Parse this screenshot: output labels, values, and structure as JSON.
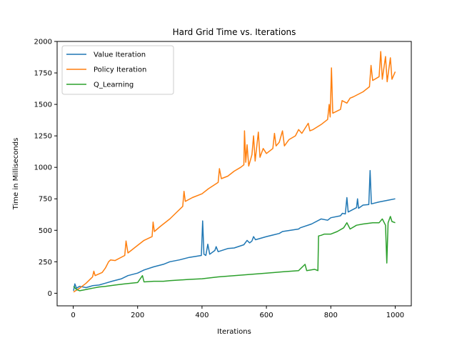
{
  "chart_data": {
    "type": "line",
    "title": "Hard Grid Time vs. Iterations",
    "xlabel": "Iterations",
    "ylabel": "Time in Milliseconds",
    "xlim": [
      -50,
      1050
    ],
    "ylim": [
      -100,
      2000
    ],
    "xticks": [
      0,
      200,
      400,
      600,
      800,
      1000
    ],
    "yticks": [
      0,
      250,
      500,
      750,
      1000,
      1250,
      1500,
      1750,
      2000
    ],
    "grid": false,
    "legend_position": "top-left",
    "series": [
      {
        "name": "Value Iteration",
        "color": "#1f77b4",
        "points": [
          [
            1,
            20
          ],
          [
            5,
            75
          ],
          [
            10,
            40
          ],
          [
            20,
            55
          ],
          [
            40,
            45
          ],
          [
            60,
            60
          ],
          [
            80,
            65
          ],
          [
            100,
            80
          ],
          [
            120,
            95
          ],
          [
            150,
            115
          ],
          [
            170,
            140
          ],
          [
            200,
            160
          ],
          [
            220,
            185
          ],
          [
            250,
            210
          ],
          [
            280,
            230
          ],
          [
            300,
            250
          ],
          [
            330,
            265
          ],
          [
            360,
            285
          ],
          [
            398,
            300
          ],
          [
            402,
            575
          ],
          [
            406,
            310
          ],
          [
            412,
            300
          ],
          [
            418,
            390
          ],
          [
            424,
            310
          ],
          [
            440,
            340
          ],
          [
            444,
            370
          ],
          [
            450,
            330
          ],
          [
            480,
            355
          ],
          [
            500,
            360
          ],
          [
            530,
            385
          ],
          [
            540,
            420
          ],
          [
            548,
            400
          ],
          [
            555,
            415
          ],
          [
            560,
            450
          ],
          [
            566,
            425
          ],
          [
            600,
            450
          ],
          [
            640,
            475
          ],
          [
            650,
            490
          ],
          [
            700,
            510
          ],
          [
            705,
            520
          ],
          [
            740,
            550
          ],
          [
            770,
            590
          ],
          [
            790,
            580
          ],
          [
            800,
            600
          ],
          [
            830,
            615
          ],
          [
            836,
            635
          ],
          [
            845,
            630
          ],
          [
            850,
            760
          ],
          [
            854,
            645
          ],
          [
            880,
            680
          ],
          [
            883,
            750
          ],
          [
            886,
            675
          ],
          [
            900,
            700
          ],
          [
            918,
            705
          ],
          [
            922,
            975
          ],
          [
            926,
            710
          ],
          [
            950,
            725
          ],
          [
            980,
            740
          ],
          [
            1000,
            750
          ]
        ]
      },
      {
        "name": "Policy Iteration",
        "color": "#ff7f0e",
        "points": [
          [
            1,
            10
          ],
          [
            20,
            40
          ],
          [
            40,
            80
          ],
          [
            60,
            130
          ],
          [
            64,
            175
          ],
          [
            68,
            140
          ],
          [
            90,
            165
          ],
          [
            100,
            200
          ],
          [
            110,
            250
          ],
          [
            116,
            265
          ],
          [
            130,
            260
          ],
          [
            160,
            300
          ],
          [
            164,
            415
          ],
          [
            170,
            320
          ],
          [
            200,
            380
          ],
          [
            220,
            420
          ],
          [
            245,
            450
          ],
          [
            248,
            565
          ],
          [
            252,
            490
          ],
          [
            270,
            530
          ],
          [
            300,
            590
          ],
          [
            320,
            640
          ],
          [
            340,
            690
          ],
          [
            344,
            810
          ],
          [
            348,
            730
          ],
          [
            370,
            760
          ],
          [
            400,
            790
          ],
          [
            420,
            830
          ],
          [
            450,
            880
          ],
          [
            454,
            990
          ],
          [
            460,
            910
          ],
          [
            480,
            930
          ],
          [
            500,
            970
          ],
          [
            520,
            1000
          ],
          [
            530,
            1020
          ],
          [
            532,
            1290
          ],
          [
            536,
            1040
          ],
          [
            540,
            1180
          ],
          [
            545,
            1010
          ],
          [
            555,
            1100
          ],
          [
            560,
            1250
          ],
          [
            565,
            1050
          ],
          [
            575,
            1280
          ],
          [
            580,
            1080
          ],
          [
            590,
            1150
          ],
          [
            600,
            1110
          ],
          [
            620,
            1150
          ],
          [
            625,
            1270
          ],
          [
            630,
            1170
          ],
          [
            640,
            1200
          ],
          [
            650,
            1290
          ],
          [
            656,
            1170
          ],
          [
            670,
            1220
          ],
          [
            690,
            1250
          ],
          [
            700,
            1300
          ],
          [
            710,
            1270
          ],
          [
            730,
            1350
          ],
          [
            735,
            1290
          ],
          [
            745,
            1300
          ],
          [
            770,
            1340
          ],
          [
            790,
            1380
          ],
          [
            795,
            1500
          ],
          [
            798,
            1400
          ],
          [
            802,
            1790
          ],
          [
            806,
            1430
          ],
          [
            830,
            1460
          ],
          [
            835,
            1530
          ],
          [
            850,
            1510
          ],
          [
            860,
            1550
          ],
          [
            870,
            1560
          ],
          [
            900,
            1600
          ],
          [
            920,
            1640
          ],
          [
            925,
            1810
          ],
          [
            930,
            1690
          ],
          [
            950,
            1720
          ],
          [
            955,
            1920
          ],
          [
            960,
            1700
          ],
          [
            970,
            1880
          ],
          [
            975,
            1680
          ],
          [
            985,
            1870
          ],
          [
            990,
            1700
          ],
          [
            1000,
            1760
          ]
        ]
      },
      {
        "name": "Q_Learning",
        "color": "#2ca02c",
        "points": [
          [
            1,
            55
          ],
          [
            10,
            30
          ],
          [
            20,
            20
          ],
          [
            40,
            30
          ],
          [
            60,
            40
          ],
          [
            80,
            50
          ],
          [
            100,
            55
          ],
          [
            130,
            65
          ],
          [
            160,
            75
          ],
          [
            200,
            85
          ],
          [
            215,
            140
          ],
          [
            220,
            90
          ],
          [
            250,
            95
          ],
          [
            280,
            95
          ],
          [
            300,
            100
          ],
          [
            330,
            105
          ],
          [
            360,
            110
          ],
          [
            400,
            115
          ],
          [
            450,
            130
          ],
          [
            500,
            140
          ],
          [
            550,
            150
          ],
          [
            600,
            160
          ],
          [
            650,
            170
          ],
          [
            700,
            180
          ],
          [
            720,
            230
          ],
          [
            725,
            180
          ],
          [
            750,
            190
          ],
          [
            760,
            180
          ],
          [
            762,
            455
          ],
          [
            770,
            460
          ],
          [
            780,
            470
          ],
          [
            800,
            470
          ],
          [
            820,
            490
          ],
          [
            840,
            520
          ],
          [
            850,
            560
          ],
          [
            860,
            510
          ],
          [
            880,
            540
          ],
          [
            900,
            550
          ],
          [
            930,
            560
          ],
          [
            950,
            560
          ],
          [
            960,
            590
          ],
          [
            970,
            540
          ],
          [
            974,
            240
          ],
          [
            978,
            560
          ],
          [
            985,
            610
          ],
          [
            990,
            570
          ],
          [
            1000,
            560
          ]
        ]
      }
    ]
  }
}
